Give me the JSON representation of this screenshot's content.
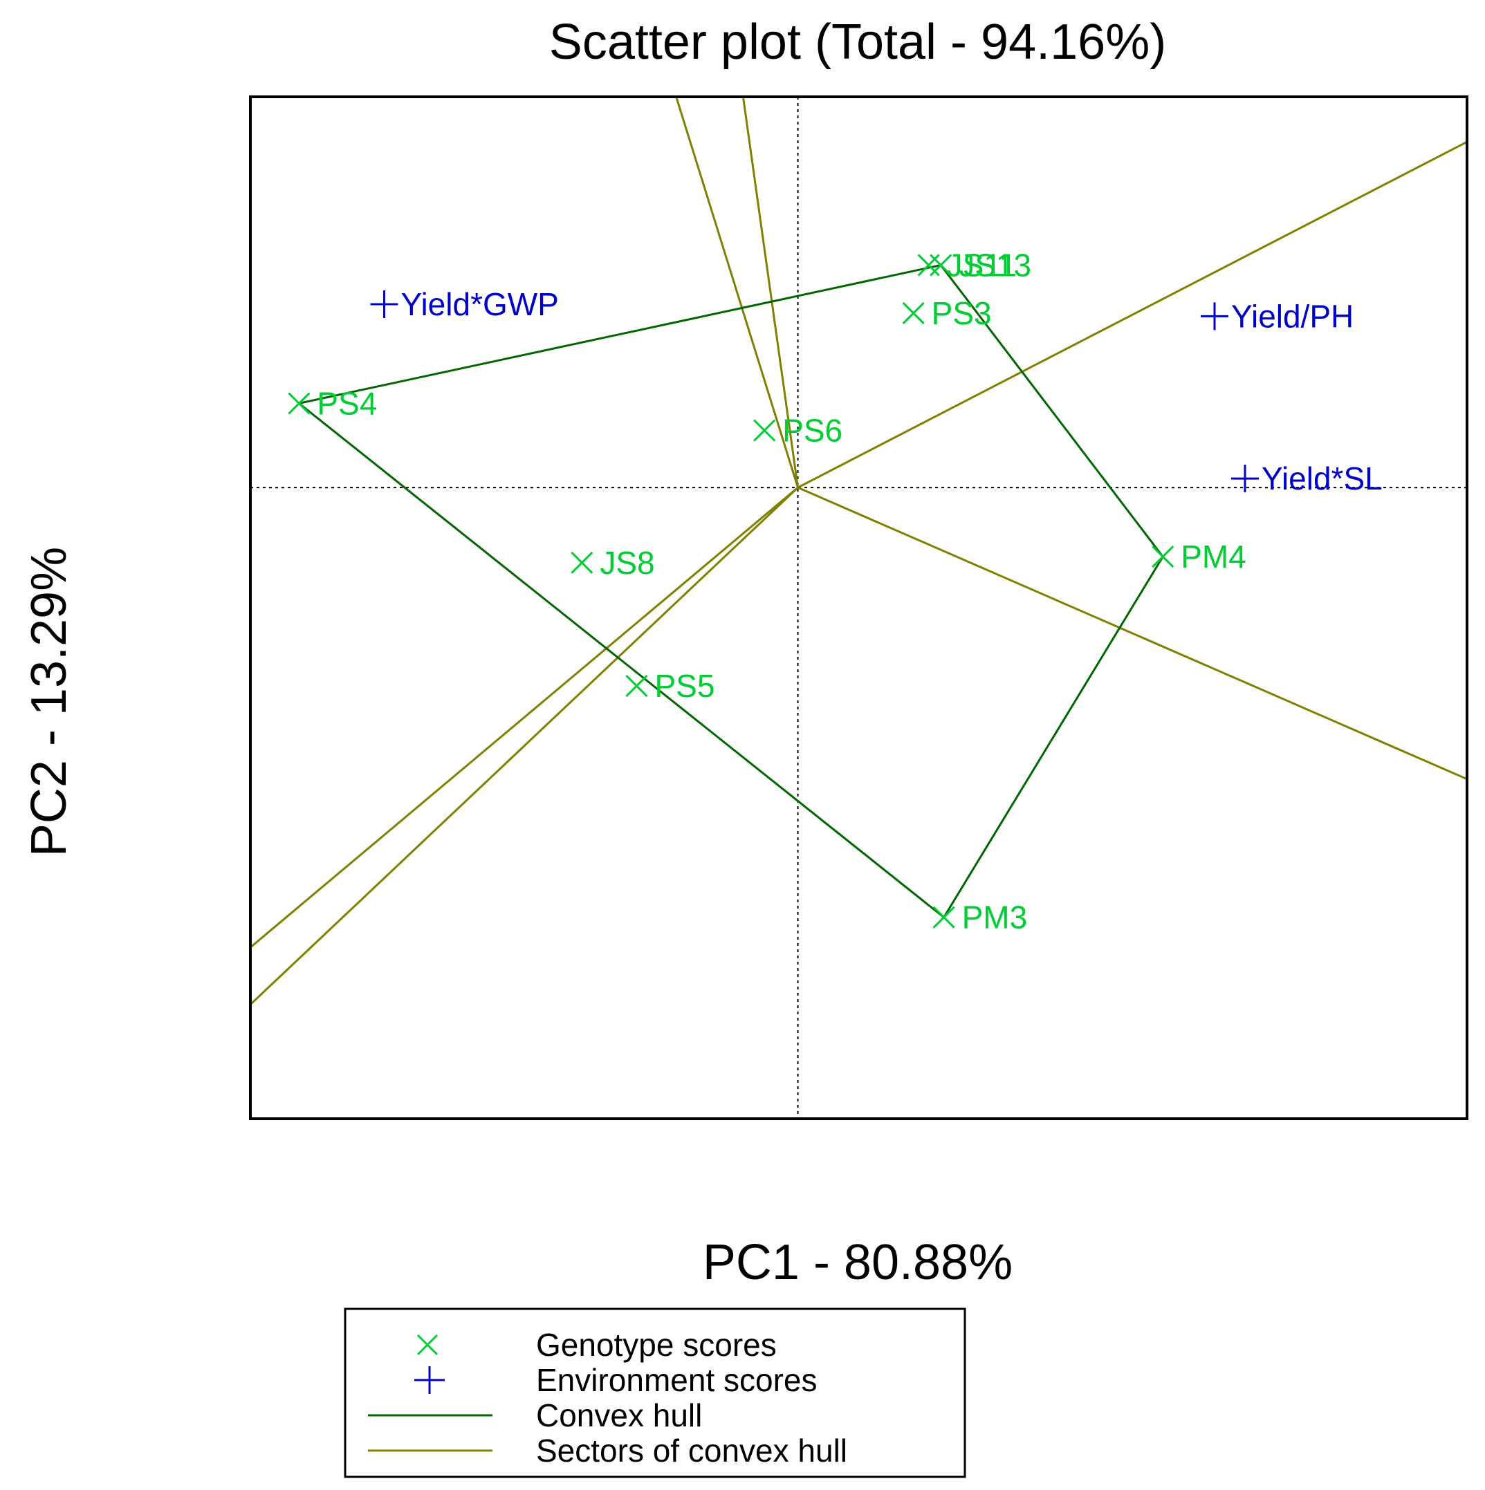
{
  "chart_data": {
    "type": "scatter",
    "title": "Scatter plot (Total - 94.16%)",
    "xlabel": "PC1 - 80.88%",
    "ylabel": "PC2 - 13.29%",
    "xlim": [
      -1.8,
      2.2
    ],
    "ylim": [
      -2.1,
      1.3
    ],
    "grid": false,
    "legend_position": "bottom",
    "colors": {
      "genotype": "#00cc33",
      "environment": "#0000cc",
      "hull": "#006600",
      "sector": "#808000",
      "axis": "#000000"
    },
    "genotypes": [
      {
        "name": "JS11",
        "x": 0.43,
        "y": 0.74
      },
      {
        "name": "JS13",
        "x": 0.47,
        "y": 0.74
      },
      {
        "name": "PS3",
        "x": 0.38,
        "y": 0.58
      },
      {
        "name": "PS4",
        "x": -1.64,
        "y": 0.28
      },
      {
        "name": "PS6",
        "x": -0.11,
        "y": 0.19
      },
      {
        "name": "JS8",
        "x": -0.71,
        "y": -0.25
      },
      {
        "name": "PS5",
        "x": -0.53,
        "y": -0.66
      },
      {
        "name": "PM4",
        "x": 1.2,
        "y": -0.23
      },
      {
        "name": "PM3",
        "x": 0.48,
        "y": -1.43
      }
    ],
    "environments": [
      {
        "name": "Yield*GWP",
        "x": -1.36,
        "y": 0.61
      },
      {
        "name": "Yield/PH",
        "x": 1.37,
        "y": 0.57
      },
      {
        "name": "Yield*SL",
        "x": 1.47,
        "y": 0.03
      }
    ],
    "origin": {
      "x": 0,
      "y": 0
    },
    "convex_hull": [
      "PS4",
      "JS13",
      "PM4",
      "PM3"
    ],
    "sector_rays": [
      {
        "x": -0.4,
        "y": 1.3
      },
      {
        "x": -0.18,
        "y": 1.3
      },
      {
        "x": 2.2,
        "y": 1.15
      },
      {
        "x": 2.2,
        "y": -0.97
      },
      {
        "x": -1.8,
        "y": -1.53
      },
      {
        "x": -1.8,
        "y": -1.72
      }
    ],
    "legend": [
      {
        "label": "Genotype scores",
        "marker": "x",
        "color": "#00cc33"
      },
      {
        "label": "Environment scores",
        "marker": "+",
        "color": "#0000cc"
      },
      {
        "label": "Convex hull",
        "marker": "line",
        "color": "#006600"
      },
      {
        "label": "Sectors of convex hull",
        "marker": "line",
        "color": "#808000"
      }
    ]
  }
}
